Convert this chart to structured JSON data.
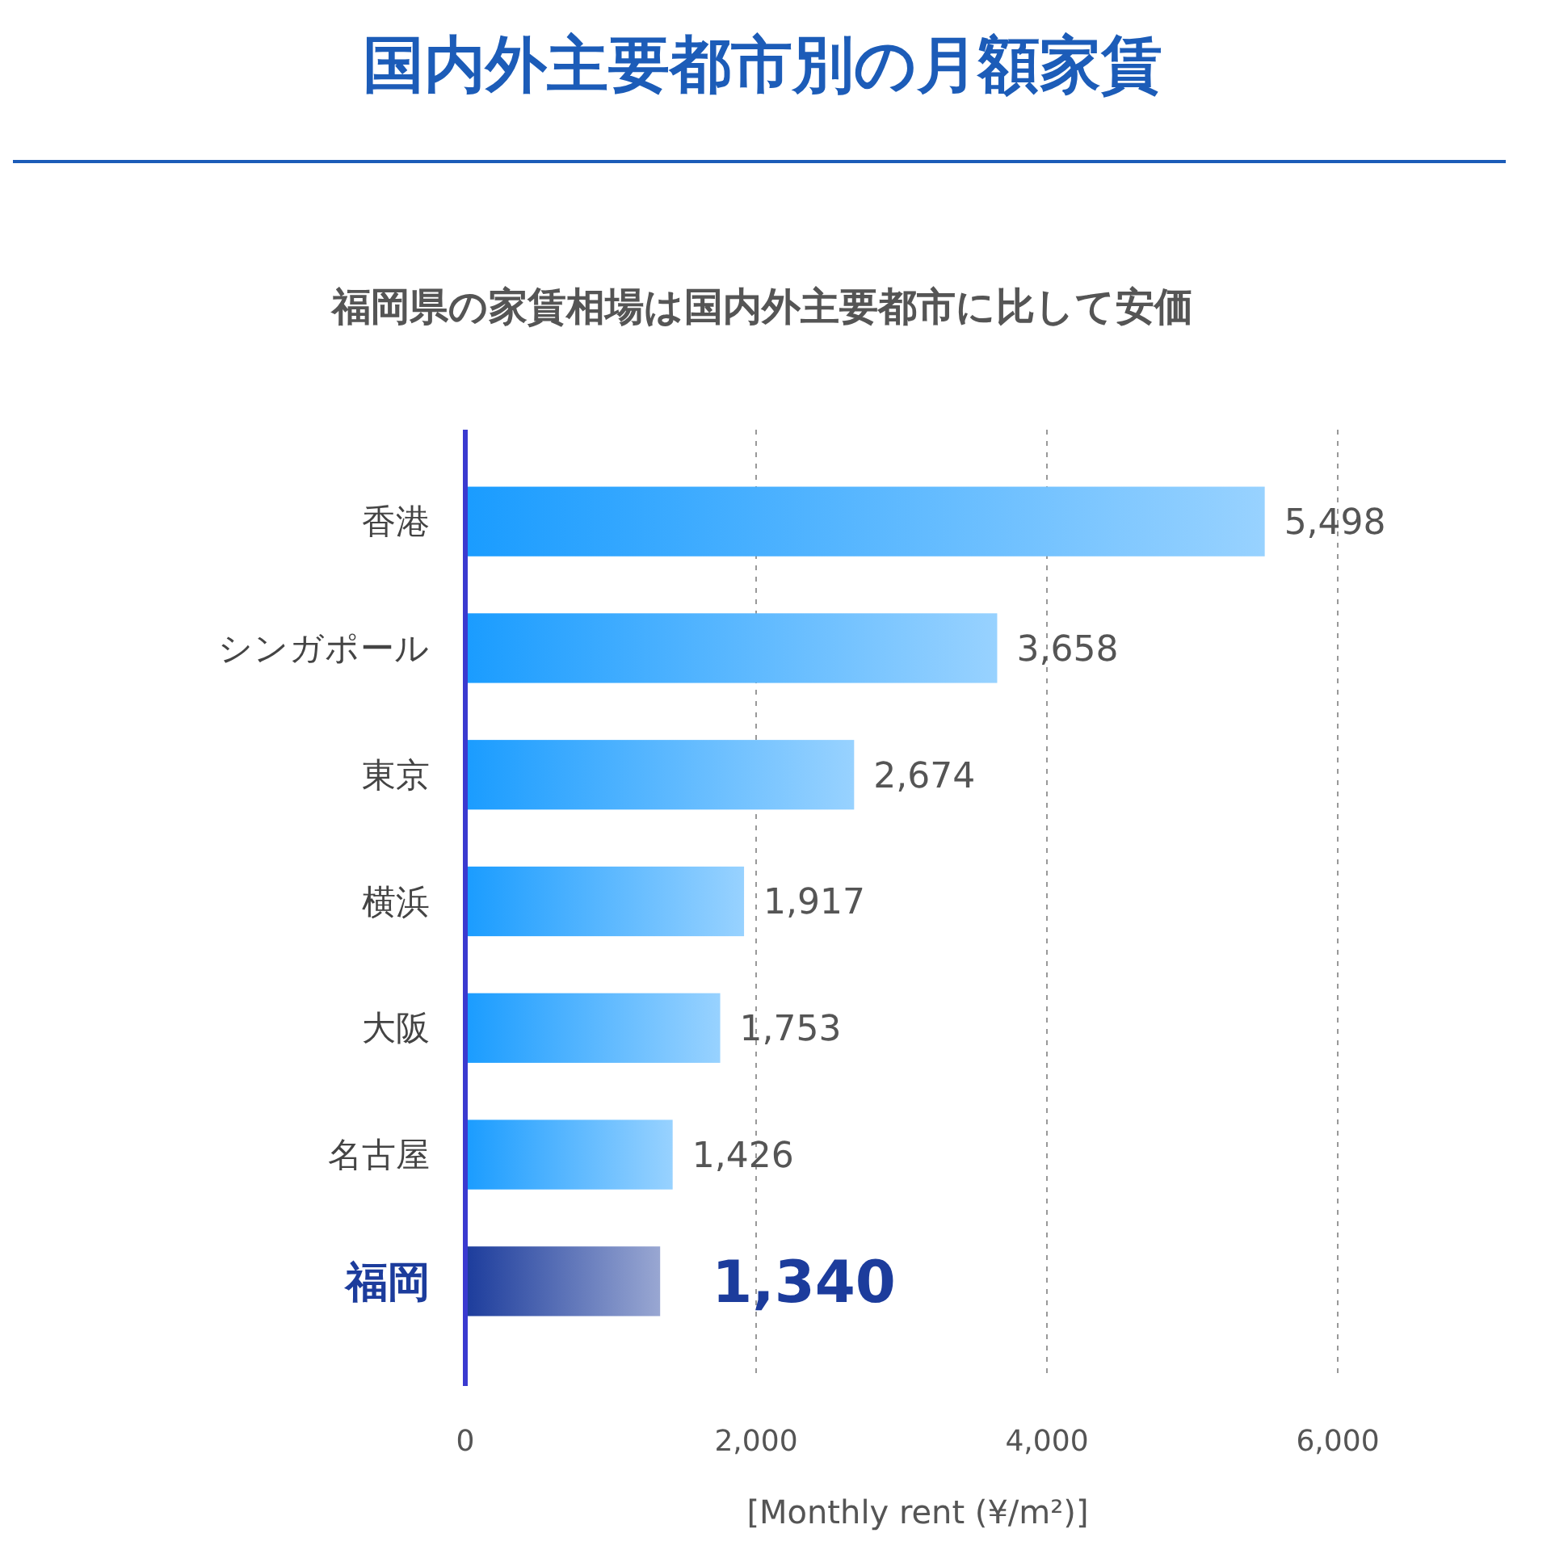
{
  "chart_data": {
    "type": "bar",
    "orientation": "horizontal",
    "title": "国内外主要都市別の月額家賃",
    "subtitle": "福岡県の家賃相場は国内外主要都市に比して安価",
    "xlabel": "[Monthly rent (¥/m²)]",
    "categories": [
      "香港",
      "シンガポール",
      "東京",
      "横浜",
      "大阪",
      "名古屋",
      "福岡"
    ],
    "values": [
      5498,
      3658,
      2674,
      1917,
      1753,
      1426,
      1340
    ],
    "colors": [
      "#1a9cff",
      "#1a9cff",
      "#1a9cff",
      "#1a9cff",
      "#1a9cff",
      "#1a9cff",
      "#1c3c9c"
    ],
    "xlim": [
      0,
      6000
    ],
    "xticks": [
      0,
      {
        "value": 2000,
        "label": "2,000"
      },
      {
        "value": 4000,
        "label": "4,000"
      },
      {
        "value": 6000,
        "label": "6,000"
      }
    ],
    "value_labels": [
      "5,498",
      "3,658",
      "2,674",
      "1,917",
      "1,753",
      "1,426",
      "1,340"
    ],
    "grid": "x"
  }
}
